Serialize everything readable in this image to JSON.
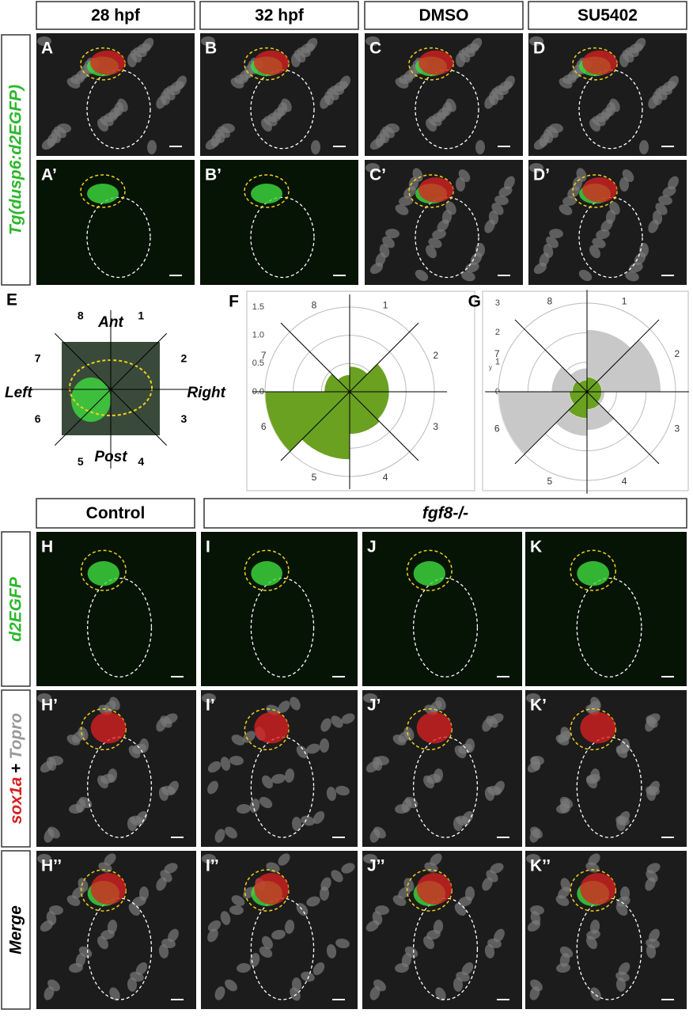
{
  "top_headers": [
    "28 hpf",
    "32 hpf",
    "DMSO",
    "SU5402"
  ],
  "top_side_label": "Tg(dusp6:d2EGFP)",
  "top_panels": [
    [
      "A",
      "B",
      "C",
      "D"
    ],
    [
      "A’",
      "B’",
      "C’",
      "D’"
    ]
  ],
  "diagram": {
    "label": "E",
    "ant": "Ant",
    "post": "Post",
    "left": "Left",
    "right": "Right",
    "sectors": [
      "1",
      "2",
      "3",
      "4",
      "5",
      "6",
      "7",
      "8"
    ]
  },
  "chart_data": [
    {
      "type": "polar_bar",
      "label": "F",
      "categories": [
        "1",
        "2",
        "3",
        "4",
        "5",
        "6",
        "7",
        "8"
      ],
      "series": [
        {
          "color": "#6aa121",
          "values": [
            0.45,
            0.7,
            0.7,
            0.75,
            1.2,
            1.5,
            0.45,
            0.3
          ]
        }
      ],
      "ylim": [
        0,
        1.5
      ],
      "yticks": [
        {
          "value": 0,
          "label": "0.0"
        },
        {
          "value": 0.5,
          "label": "0.5"
        },
        {
          "value": 1,
          "label": "1.0"
        },
        {
          "value": 1.5,
          "label": "1.5"
        }
      ],
      "grid": true
    },
    {
      "type": "polar_bar",
      "label": "G",
      "ylabel": "y",
      "categories": [
        "1",
        "2",
        "3",
        "4",
        "5",
        "6",
        "7",
        "8"
      ],
      "series": [
        {
          "color": "#c8c8c8",
          "values": [
            2.1,
            2.5,
            0.6,
            1.3,
            1.5,
            3,
            1.2,
            0.8
          ]
        },
        {
          "color": "#6aa121",
          "values": [
            0.5,
            0.5,
            0.5,
            0.6,
            0.9,
            0.6,
            0.5,
            0.4
          ]
        }
      ],
      "ylim": [
        0,
        3
      ],
      "yticks": [
        0,
        1,
        2,
        3
      ],
      "grid": true
    }
  ],
  "bottom_headers": [
    "Control",
    "fgf8-/-"
  ],
  "bottom_side_labels": {
    "row1": "d2EGFP",
    "row2": {
      "a": "sox1a",
      "b": "+",
      "c": "Topro"
    },
    "row3": "Merge"
  },
  "bottom_panels": [
    [
      "H",
      "I",
      "J",
      "K"
    ],
    [
      "H’",
      "I’",
      "J’",
      "K’"
    ],
    [
      "H’’",
      "I’’",
      "J’’",
      "K’’"
    ]
  ]
}
